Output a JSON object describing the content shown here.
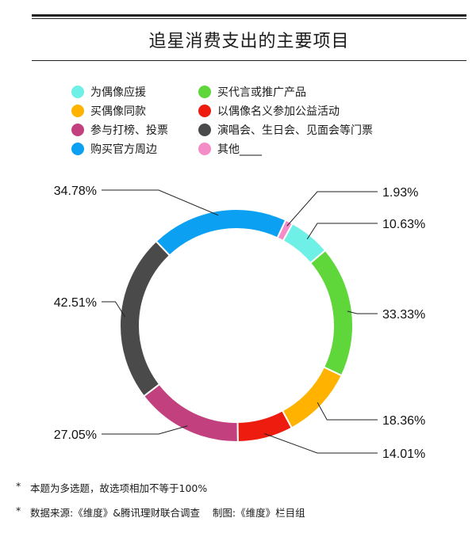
{
  "chart_data": {
    "type": "pie",
    "donut": true,
    "title": "追星消费支出的主要项目",
    "categories": [
      "为偶像应援",
      "买偶像同款",
      "参与打榜、投票",
      "购买官方周边",
      "买代言或推广产品",
      "以偶像名义参加公益活动",
      "演唱会、生日会、见面会等门票",
      "其他____"
    ],
    "slices": [
      {
        "legend": "其他____",
        "value": 1.93,
        "label": "1.93%",
        "color": "#f48cc8"
      },
      {
        "legend": "为偶像应援",
        "value": 10.63,
        "label": "10.63%",
        "color": "#6ff0e6"
      },
      {
        "legend": "买代言或推广产品",
        "value": 33.33,
        "label": "33.33%",
        "color": "#5fd63a"
      },
      {
        "legend": "买偶像同款",
        "value": 18.36,
        "label": "18.36%",
        "color": "#ffb300"
      },
      {
        "legend": "以偶像名义参加公益活动",
        "value": 14.01,
        "label": "14.01%",
        "color": "#ee1c0e"
      },
      {
        "legend": "参与打榜、投票",
        "value": 27.05,
        "label": "27.05%",
        "color": "#c2407e"
      },
      {
        "legend": "演唱会、生日会、见面会等门票",
        "value": 42.51,
        "label": "42.51%",
        "color": "#4a4a4a"
      },
      {
        "legend": "购买官方周边",
        "value": 34.78,
        "label": "34.78%",
        "color": "#0ca0f2"
      }
    ],
    "legend_placement": "top",
    "grid": false
  },
  "legend": [
    {
      "label": "为偶像应援",
      "color": "#6ff0e6"
    },
    {
      "label": "买偶像同款",
      "color": "#ffb300"
    },
    {
      "label": "参与打榜、投票",
      "color": "#c2407e"
    },
    {
      "label": "购买官方周边",
      "color": "#0ca0f2"
    },
    {
      "label": "买代言或推广产品",
      "color": "#5fd63a"
    },
    {
      "label": "以偶像名义参加公益活动",
      "color": "#ee1c0e"
    },
    {
      "label": "演唱会、生日会、见面会等门票",
      "color": "#4a4a4a"
    },
    {
      "label": "其他____",
      "color": "#f48cc8"
    }
  ],
  "notes": {
    "star": "*",
    "note1": "本题为多选题，故选项相加不等于100%",
    "note2": "数据来源:《维度》&腾讯理财联合调查    制图:《维度》栏目组"
  }
}
